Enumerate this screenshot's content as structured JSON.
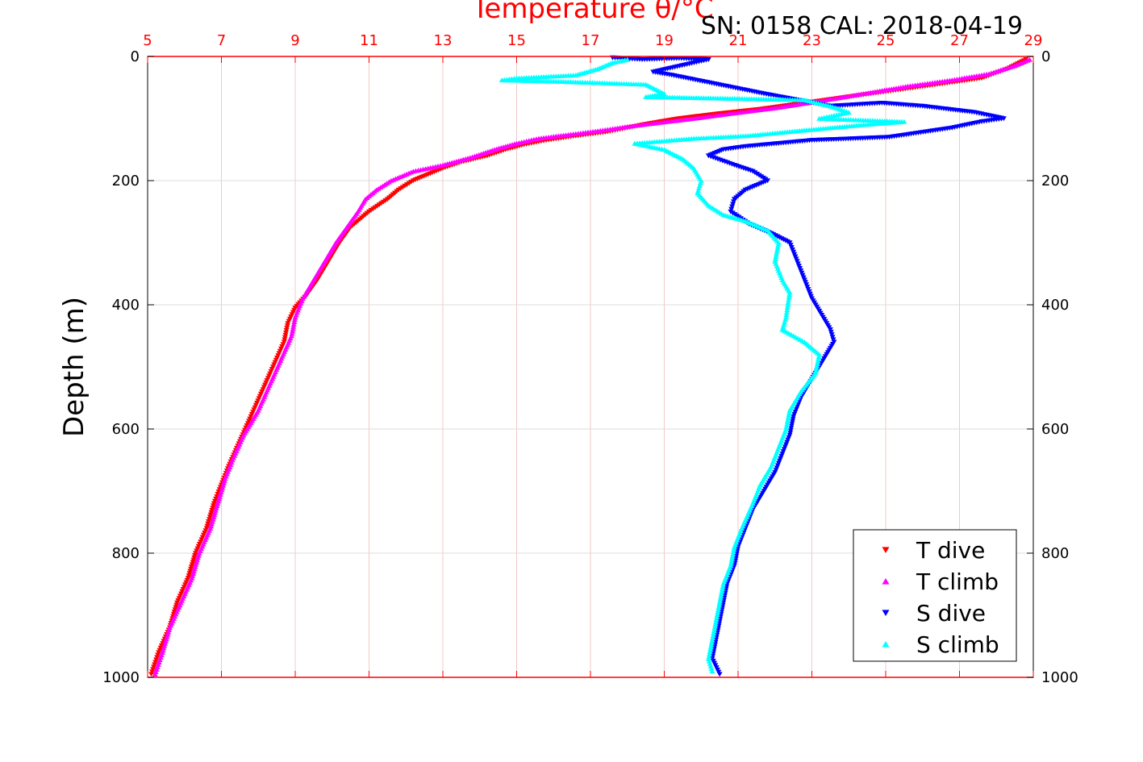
{
  "chart_data": {
    "type": "scatter",
    "title": "Temperature θ/°C",
    "subtitle": "SN: 0158  CAL: 2018-04-19",
    "ylabel": "Depth (m)",
    "xlabel": "",
    "xlim": [
      5,
      29
    ],
    "ylim": [
      1000,
      0
    ],
    "x_ticks": [
      "5",
      "7",
      "9",
      "11",
      "13",
      "15",
      "17",
      "19",
      "21",
      "23",
      "25",
      "27",
      "29"
    ],
    "y_ticks": [
      "0",
      "200",
      "400",
      "600",
      "800",
      "1000"
    ],
    "grid": true,
    "legend_position": "bottom-right",
    "colors": {
      "title": "#ff0000",
      "top_axis": "#ff0000",
      "grid": "#f2c8c8",
      "grid_h": "#dddddd"
    },
    "series": [
      {
        "name": "T dive",
        "marker": "triangle-down",
        "color": "#ff0000",
        "points": [
          [
            28.8,
            5
          ],
          [
            28.3,
            20
          ],
          [
            27.6,
            35
          ],
          [
            26.4,
            45
          ],
          [
            25.2,
            55
          ],
          [
            24.0,
            65
          ],
          [
            22.8,
            75
          ],
          [
            21.6,
            85
          ],
          [
            20.5,
            92
          ],
          [
            19.4,
            100
          ],
          [
            18.6,
            108
          ],
          [
            18.0,
            115
          ],
          [
            17.4,
            122
          ],
          [
            16.6,
            128
          ],
          [
            15.8,
            135
          ],
          [
            15.2,
            142
          ],
          [
            14.7,
            150
          ],
          [
            14.2,
            160
          ],
          [
            13.5,
            170
          ],
          [
            13.0,
            180
          ],
          [
            12.6,
            190
          ],
          [
            12.2,
            200
          ],
          [
            11.8,
            215
          ],
          [
            11.5,
            230
          ],
          [
            11.0,
            250
          ],
          [
            10.5,
            275
          ],
          [
            10.2,
            300
          ],
          [
            9.9,
            330
          ],
          [
            9.6,
            360
          ],
          [
            9.3,
            385
          ],
          [
            9.0,
            405
          ],
          [
            8.8,
            430
          ],
          [
            8.7,
            460
          ],
          [
            8.4,
            500
          ],
          [
            8.1,
            540
          ],
          [
            7.8,
            580
          ],
          [
            7.5,
            620
          ],
          [
            7.2,
            660
          ],
          [
            7.0,
            690
          ],
          [
            6.8,
            720
          ],
          [
            6.6,
            760
          ],
          [
            6.3,
            800
          ],
          [
            6.1,
            840
          ],
          [
            5.8,
            880
          ],
          [
            5.6,
            920
          ],
          [
            5.3,
            960
          ],
          [
            5.1,
            995
          ]
        ]
      },
      {
        "name": "T climb",
        "marker": "triangle-up",
        "color": "#ff00ff",
        "points": [
          [
            28.9,
            5
          ],
          [
            28.5,
            15
          ],
          [
            27.8,
            28
          ],
          [
            26.8,
            38
          ],
          [
            25.6,
            48
          ],
          [
            24.4,
            60
          ],
          [
            23.2,
            72
          ],
          [
            22.0,
            83
          ],
          [
            20.8,
            92
          ],
          [
            19.8,
            100
          ],
          [
            18.8,
            107
          ],
          [
            18.0,
            113
          ],
          [
            17.2,
            120
          ],
          [
            16.4,
            126
          ],
          [
            15.6,
            132
          ],
          [
            15.0,
            140
          ],
          [
            14.4,
            150
          ],
          [
            13.8,
            162
          ],
          [
            13.0,
            175
          ],
          [
            12.2,
            185
          ],
          [
            11.6,
            200
          ],
          [
            11.2,
            215
          ],
          [
            10.9,
            230
          ],
          [
            10.7,
            250
          ],
          [
            10.4,
            275
          ],
          [
            10.1,
            300
          ],
          [
            9.8,
            330
          ],
          [
            9.5,
            360
          ],
          [
            9.2,
            390
          ],
          [
            9.0,
            420
          ],
          [
            8.9,
            450
          ],
          [
            8.6,
            490
          ],
          [
            8.3,
            530
          ],
          [
            8.0,
            570
          ],
          [
            7.6,
            610
          ],
          [
            7.3,
            650
          ],
          [
            7.1,
            680
          ],
          [
            6.9,
            720
          ],
          [
            6.7,
            760
          ],
          [
            6.4,
            800
          ],
          [
            6.2,
            840
          ],
          [
            5.9,
            880
          ],
          [
            5.6,
            920
          ],
          [
            5.4,
            960
          ],
          [
            5.2,
            995
          ]
        ]
      },
      {
        "name": "S dive",
        "marker": "triangle-down",
        "color": "#0000ff",
        "points": [
          [
            17.6,
            2
          ],
          [
            18.4,
            5
          ],
          [
            19.4,
            3
          ],
          [
            20.2,
            5
          ],
          [
            18.7,
            25
          ],
          [
            19.2,
            30
          ],
          [
            21.7,
            60
          ],
          [
            23.5,
            80
          ],
          [
            24.9,
            75
          ],
          [
            26.0,
            80
          ],
          [
            27.4,
            90
          ],
          [
            28.2,
            100
          ],
          [
            27.6,
            105
          ],
          [
            26.8,
            115
          ],
          [
            25.1,
            130
          ],
          [
            23.0,
            135
          ],
          [
            21.2,
            145
          ],
          [
            20.6,
            150
          ],
          [
            20.2,
            160
          ],
          [
            20.9,
            175
          ],
          [
            21.4,
            185
          ],
          [
            21.8,
            200
          ],
          [
            21.2,
            215
          ],
          [
            20.9,
            230
          ],
          [
            20.8,
            250
          ],
          [
            21.3,
            270
          ],
          [
            21.9,
            285
          ],
          [
            22.4,
            300
          ],
          [
            22.6,
            330
          ],
          [
            22.8,
            360
          ],
          [
            23.0,
            390
          ],
          [
            23.2,
            410
          ],
          [
            23.5,
            440
          ],
          [
            23.6,
            460
          ],
          [
            23.3,
            490
          ],
          [
            23.0,
            520
          ],
          [
            22.7,
            550
          ],
          [
            22.5,
            580
          ],
          [
            22.4,
            610
          ],
          [
            22.2,
            640
          ],
          [
            22.0,
            670
          ],
          [
            21.7,
            700
          ],
          [
            21.4,
            730
          ],
          [
            21.2,
            760
          ],
          [
            21.0,
            790
          ],
          [
            20.9,
            820
          ],
          [
            20.7,
            850
          ],
          [
            20.6,
            880
          ],
          [
            20.5,
            910
          ],
          [
            20.4,
            940
          ],
          [
            20.3,
            970
          ],
          [
            20.5,
            995
          ]
        ]
      },
      {
        "name": "S climb",
        "marker": "triangle-up",
        "color": "#00ffff",
        "points": [
          [
            18.0,
            5
          ],
          [
            17.6,
            10
          ],
          [
            17.2,
            20
          ],
          [
            16.6,
            30
          ],
          [
            15.0,
            35
          ],
          [
            14.6,
            38
          ],
          [
            16.0,
            40
          ],
          [
            18.5,
            45
          ],
          [
            19.0,
            60
          ],
          [
            18.5,
            65
          ],
          [
            22.8,
            70
          ],
          [
            23.5,
            80
          ],
          [
            24.0,
            90
          ],
          [
            23.2,
            100
          ],
          [
            25.5,
            105
          ],
          [
            24.4,
            110
          ],
          [
            22.6,
            120
          ],
          [
            21.2,
            128
          ],
          [
            19.8,
            132
          ],
          [
            18.2,
            140
          ],
          [
            19.0,
            150
          ],
          [
            19.5,
            165
          ],
          [
            19.8,
            180
          ],
          [
            20.0,
            200
          ],
          [
            19.9,
            220
          ],
          [
            20.2,
            240
          ],
          [
            20.6,
            255
          ],
          [
            21.2,
            265
          ],
          [
            21.8,
            280
          ],
          [
            22.1,
            300
          ],
          [
            22.0,
            330
          ],
          [
            22.2,
            360
          ],
          [
            22.4,
            380
          ],
          [
            22.3,
            420
          ],
          [
            22.2,
            440
          ],
          [
            22.8,
            460
          ],
          [
            23.2,
            480
          ],
          [
            23.1,
            510
          ],
          [
            22.7,
            540
          ],
          [
            22.4,
            570
          ],
          [
            22.3,
            600
          ],
          [
            22.1,
            630
          ],
          [
            21.9,
            660
          ],
          [
            21.6,
            690
          ],
          [
            21.4,
            720
          ],
          [
            21.1,
            760
          ],
          [
            20.9,
            790
          ],
          [
            20.8,
            820
          ],
          [
            20.6,
            850
          ],
          [
            20.5,
            880
          ],
          [
            20.4,
            910
          ],
          [
            20.3,
            940
          ],
          [
            20.2,
            970
          ],
          [
            20.3,
            990
          ]
        ]
      }
    ]
  }
}
